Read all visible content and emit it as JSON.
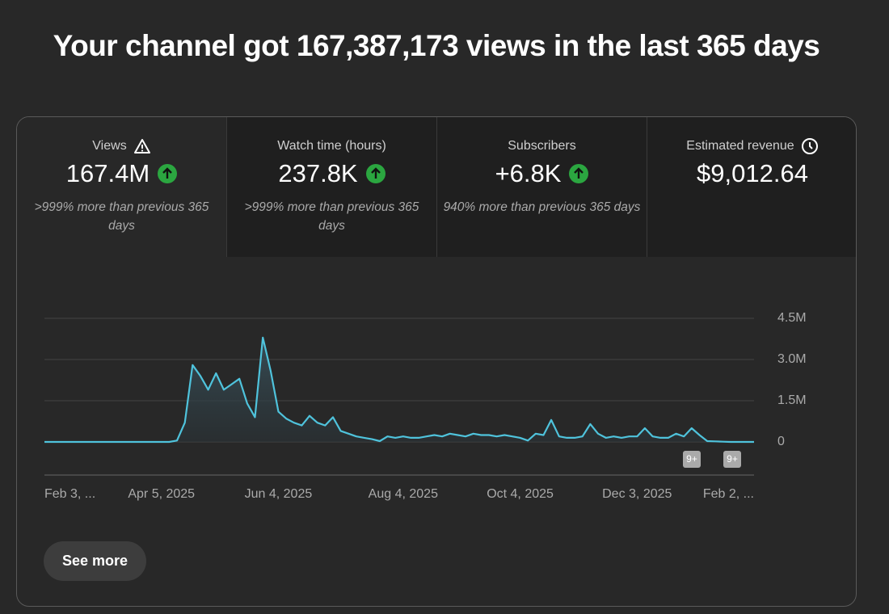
{
  "header": {
    "title": "Your channel got 167,387,173 views in the last 365 days"
  },
  "cards": [
    {
      "label": "Views",
      "value": "167.4M",
      "note": ">999% more than previous 365 days"
    },
    {
      "label": "Watch time (hours)",
      "value": "237.8K",
      "note": ">999% more than previous 365 days"
    },
    {
      "label": "Subscribers",
      "value": "+6.8K",
      "note": "940% more than previous 365 days"
    },
    {
      "label": "Estimated revenue",
      "value": "$9,012.64"
    }
  ],
  "chart_data": {
    "type": "line",
    "categories": [
      "Feb 3, ...",
      null,
      null,
      null,
      null,
      null,
      null,
      null,
      null,
      null,
      null,
      null,
      null,
      null,
      null,
      "Apr 5, 2025",
      null,
      null,
      null,
      null,
      null,
      null,
      null,
      null,
      null,
      null,
      null,
      null,
      null,
      null,
      "Jun 4, 2025",
      null,
      null,
      null,
      null,
      null,
      null,
      null,
      null,
      null,
      null,
      null,
      null,
      null,
      null,
      null,
      "Aug 4, 2025",
      null,
      null,
      null,
      null,
      null,
      null,
      null,
      null,
      null,
      null,
      null,
      null,
      null,
      null,
      "Oct 4, 2025",
      null,
      null,
      null,
      null,
      null,
      null,
      null,
      null,
      null,
      null,
      null,
      null,
      null,
      null,
      "Dec 3, 2025",
      null,
      null,
      null,
      null,
      null,
      null,
      null,
      null,
      null,
      null,
      null,
      null,
      null,
      null,
      "Feb 2, ..."
    ],
    "series": [
      {
        "name": "Views",
        "color": "#4fc3dc",
        "values": [
          0,
          0,
          0,
          0,
          0,
          0,
          0,
          0,
          0,
          0,
          0,
          0,
          0,
          0,
          0,
          0,
          0,
          50000,
          700000,
          2800000,
          2400000,
          1900000,
          2500000,
          1900000,
          2100000,
          2300000,
          1400000,
          900000,
          3800000,
          2600000,
          1100000,
          850000,
          700000,
          600000,
          950000,
          700000,
          600000,
          900000,
          400000,
          300000,
          200000,
          150000,
          100000,
          30000,
          200000,
          150000,
          200000,
          150000,
          150000,
          200000,
          250000,
          200000,
          300000,
          250000,
          200000,
          300000,
          250000,
          250000,
          200000,
          250000,
          200000,
          150000,
          50000,
          300000,
          250000,
          800000,
          200000,
          150000,
          150000,
          200000,
          650000,
          300000,
          150000,
          200000,
          150000,
          200000,
          200000,
          500000,
          200000,
          150000,
          150000,
          300000,
          200000,
          500000,
          250000,
          30000,
          20000,
          10000,
          0,
          0,
          0,
          0
        ]
      }
    ],
    "ylim": [
      0,
      4500000
    ],
    "yticks": [
      0,
      {
        "value": 1500000,
        "label": "1.5M"
      },
      {
        "value": 3000000,
        "label": "3.0M"
      },
      {
        "value": 4500000,
        "label": "4.5M"
      }
    ],
    "grid": true,
    "annotations": [
      "9+",
      "9+"
    ]
  },
  "button": "See more"
}
